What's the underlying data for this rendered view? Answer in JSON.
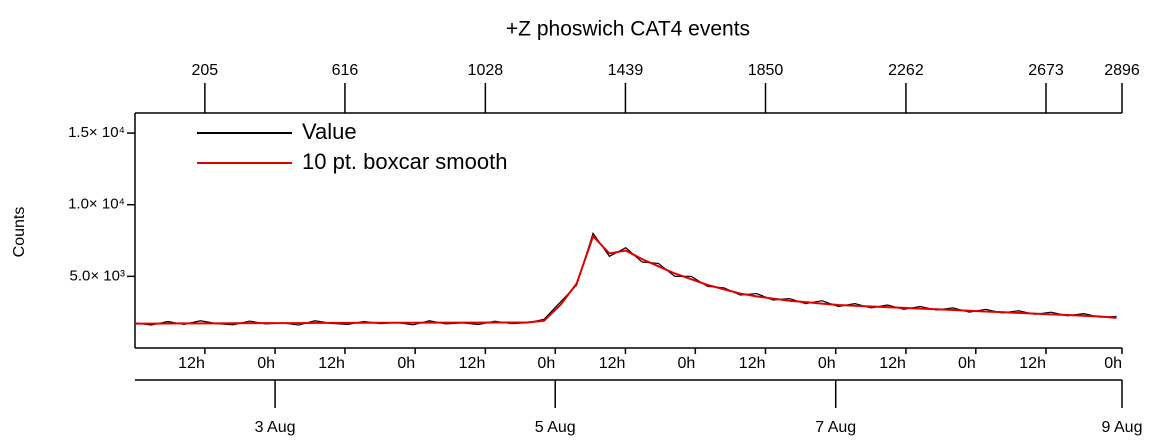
{
  "chart_data": {
    "type": "line",
    "title": "+Z phoswich CAT4 events",
    "y_label": "Counts",
    "x": [
      0,
      48,
      96,
      144,
      192,
      240,
      288,
      336,
      384,
      432,
      480,
      528,
      576,
      624,
      672,
      720,
      768,
      816,
      864,
      912,
      960,
      1008,
      1056,
      1104,
      1152,
      1200,
      1248,
      1296,
      1344,
      1392,
      1440,
      1488,
      1536,
      1584,
      1632,
      1680,
      1728,
      1776,
      1824,
      1872,
      1920,
      1968,
      2016,
      2064,
      2112,
      2160,
      2208,
      2256,
      2304,
      2352,
      2400,
      2448,
      2496,
      2544,
      2592,
      2640,
      2688,
      2736,
      2784,
      2832,
      2880
    ],
    "series": [
      {
        "name": "Value",
        "color": "#000000",
        "values": [
          1750,
          1600,
          1850,
          1650,
          1900,
          1700,
          1620,
          1880,
          1680,
          1750,
          1600,
          1900,
          1720,
          1650,
          1850,
          1700,
          1780,
          1620,
          1900,
          1680,
          1750,
          1640,
          1870,
          1700,
          1760,
          2000,
          3200,
          4400,
          8000,
          6400,
          7000,
          6000,
          5900,
          5000,
          5000,
          4300,
          4200,
          3700,
          3800,
          3350,
          3450,
          3100,
          3300,
          2900,
          3100,
          2800,
          3000,
          2700,
          2900,
          2650,
          2800,
          2500,
          2700,
          2450,
          2600,
          2350,
          2500,
          2250,
          2400,
          2150,
          2200
        ]
      },
      {
        "name": "10 pt. boxcar smooth",
        "color": "#e00000",
        "values": [
          1700,
          1700,
          1710,
          1720,
          1720,
          1720,
          1730,
          1740,
          1740,
          1740,
          1740,
          1750,
          1750,
          1750,
          1760,
          1760,
          1760,
          1760,
          1770,
          1770,
          1770,
          1770,
          1780,
          1780,
          1790,
          1900,
          3000,
          4500,
          7800,
          6600,
          6800,
          6200,
          5700,
          5200,
          4800,
          4400,
          4100,
          3800,
          3600,
          3450,
          3300,
          3200,
          3100,
          3000,
          2950,
          2900,
          2850,
          2800,
          2750,
          2700,
          2650,
          2600,
          2550,
          2500,
          2450,
          2400,
          2350,
          2300,
          2250,
          2200,
          2100
        ]
      }
    ],
    "xlim": [
      0,
      2896
    ],
    "x2ticks": [
      205,
      616,
      1028,
      1439,
      1850,
      2262,
      2673,
      2896
    ],
    "xticks": [
      {
        "value": 205,
        "label": "12h"
      },
      {
        "value": 411,
        "label": "0h"
      },
      {
        "value": 616,
        "label": "12h"
      },
      {
        "value": 822,
        "label": "0h"
      },
      {
        "value": 1028,
        "label": "12h"
      },
      {
        "value": 1233,
        "label": "0h"
      },
      {
        "value": 1439,
        "label": "12h"
      },
      {
        "value": 1644,
        "label": "0h"
      },
      {
        "value": 1850,
        "label": "12h"
      },
      {
        "value": 2056,
        "label": "0h"
      },
      {
        "value": 2262,
        "label": "12h"
      },
      {
        "value": 2467,
        "label": "0h"
      },
      {
        "value": 2673,
        "label": "12h"
      },
      {
        "value": 2896,
        "label": "0h"
      }
    ],
    "dateticks": [
      {
        "value": 411,
        "label": "3 Aug"
      },
      {
        "value": 1233,
        "label": "5 Aug"
      },
      {
        "value": 2056,
        "label": "7 Aug"
      },
      {
        "value": 2896,
        "label": "9 Aug"
      }
    ],
    "ylim": [
      0,
      16400
    ],
    "yticks": [
      {
        "value": 5000,
        "label": "5.0× 10³"
      },
      {
        "value": 10000,
        "label": "1.0× 10⁴"
      },
      {
        "value": 15000,
        "label": "1.5× 10⁴"
      }
    ],
    "legend": "top-left"
  }
}
